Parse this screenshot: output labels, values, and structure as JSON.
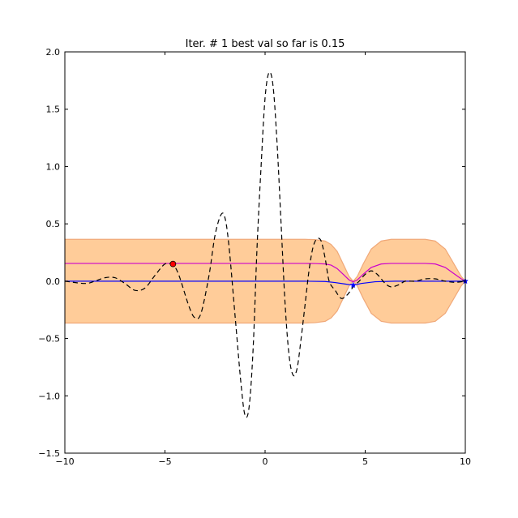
{
  "chart_data": {
    "type": "line",
    "title": "Iter. # 1 best val so far is 0.15",
    "xlabel": "",
    "ylabel": "",
    "xlim": [
      -10,
      10
    ],
    "ylim": [
      -1.5,
      2.0
    ],
    "x_ticks": [
      -10,
      -5,
      0,
      5,
      10
    ],
    "x_tick_labels": [
      "−10",
      "−5",
      "0",
      "5",
      "10"
    ],
    "y_ticks": [
      -1.5,
      -1.0,
      -0.5,
      0.0,
      0.5,
      1.0,
      1.5,
      2.0
    ],
    "y_tick_labels": [
      "−1.5",
      "−1.0",
      "−0.5",
      "0.0",
      "0.5",
      "1.0",
      "1.5",
      "2.0"
    ],
    "grid": false,
    "legend": "none",
    "colors": {
      "band_fill": "#ffcc99",
      "band_edge": "#f0a878",
      "objective": "#000000",
      "mean": "#0000ff",
      "acquisition": "#cc00cc",
      "best_point": "#ff0000",
      "observed_points": "#0000ff"
    },
    "series": [
      {
        "kind": "dashed-line",
        "x": [
          -10,
          -9,
          -8.5,
          -8,
          -7.5,
          -7,
          -6.5,
          -6,
          -5.5,
          -5,
          -4.6,
          -4.3,
          -3.8,
          -3.5,
          -3.2,
          -2.8,
          -2.5,
          -2.2,
          -2.0,
          -1.8,
          -1.5,
          -1.2,
          -1.0,
          -0.8,
          -0.6,
          -0.4,
          -0.2,
          0.0,
          0.2,
          0.4,
          0.6,
          0.8,
          1.0,
          1.2,
          1.4,
          1.6,
          1.8,
          2.0,
          2.2,
          2.4,
          2.6,
          2.8,
          3.0,
          3.2,
          3.5,
          3.8,
          4.1,
          4.4,
          4.7,
          5.0,
          5.3,
          5.6,
          6.0,
          6.3,
          6.7,
          7.0,
          7.5,
          8.0,
          8.5,
          9.0,
          9.5,
          10.0
        ],
        "values": [
          0.0,
          -0.02,
          0.0,
          0.03,
          0.03,
          -0.02,
          -0.08,
          -0.06,
          0.05,
          0.15,
          0.14,
          0.05,
          -0.22,
          -0.32,
          -0.28,
          0.05,
          0.4,
          0.58,
          0.55,
          0.3,
          -0.3,
          -0.9,
          -1.17,
          -1.1,
          -0.6,
          0.3,
          1.0,
          1.6,
          1.82,
          1.7,
          1.2,
          0.5,
          -0.2,
          -0.65,
          -0.82,
          -0.76,
          -0.5,
          -0.2,
          0.1,
          0.3,
          0.37,
          0.35,
          0.2,
          0.0,
          -0.08,
          -0.15,
          -0.12,
          -0.05,
          0.0,
          0.06,
          0.09,
          0.06,
          -0.02,
          -0.05,
          -0.03,
          0.0,
          0.0,
          0.02,
          0.02,
          0.0,
          -0.01,
          0.0
        ]
      },
      {
        "kind": "mean-line",
        "x": [
          -10,
          -5,
          0,
          2,
          3,
          3.5,
          4.0,
          4.4,
          4.8,
          5.5,
          6.5,
          8.0,
          9.5,
          10.0
        ],
        "values": [
          0.0,
          0.0,
          0.0,
          0.0,
          -0.003,
          -0.012,
          -0.025,
          -0.035,
          -0.02,
          -0.005,
          0.0,
          0.0,
          0.0,
          0.0
        ]
      },
      {
        "kind": "acquisition-line",
        "x": [
          -10,
          -5,
          0,
          2.0,
          2.5,
          3.0,
          3.3,
          3.6,
          3.9,
          4.2,
          4.4,
          4.6,
          4.9,
          5.3,
          5.8,
          6.3,
          7.0,
          8.0,
          8.5,
          9.0,
          9.4,
          9.8,
          10.0
        ],
        "values": [
          0.155,
          0.155,
          0.155,
          0.155,
          0.154,
          0.15,
          0.14,
          0.11,
          0.06,
          0.01,
          -0.005,
          0.01,
          0.06,
          0.12,
          0.15,
          0.155,
          0.155,
          0.155,
          0.15,
          0.12,
          0.07,
          0.02,
          0.0
        ],
        "upper": [
          0.365,
          0.365,
          0.365,
          0.365,
          0.362,
          0.35,
          0.32,
          0.26,
          0.15,
          0.04,
          0.0,
          0.04,
          0.15,
          0.28,
          0.35,
          0.365,
          0.365,
          0.365,
          0.35,
          0.28,
          0.16,
          0.04,
          0.0
        ],
        "lower": [
          -0.365,
          -0.365,
          -0.365,
          -0.365,
          -0.362,
          -0.35,
          -0.32,
          -0.26,
          -0.15,
          -0.04,
          0.0,
          -0.04,
          -0.15,
          -0.28,
          -0.35,
          -0.365,
          -0.365,
          -0.365,
          -0.35,
          -0.28,
          -0.16,
          -0.04,
          0.0
        ]
      }
    ],
    "points": [
      {
        "kind": "best",
        "x": -4.6,
        "y": 0.15
      },
      {
        "kind": "observed",
        "x": 4.4,
        "y": -0.035
      },
      {
        "kind": "observed",
        "x": 10.0,
        "y": 0.0
      }
    ]
  }
}
